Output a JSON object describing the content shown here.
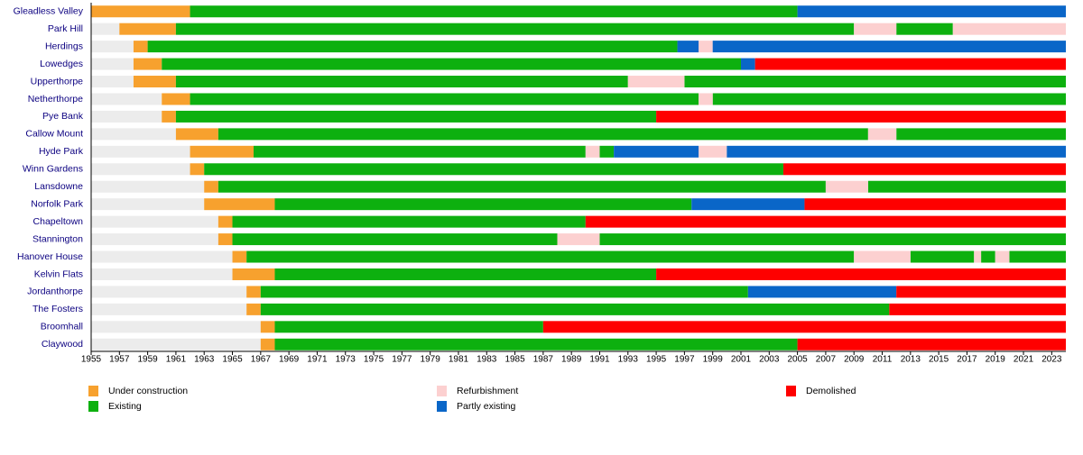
{
  "chart_data": {
    "type": "timeline",
    "categories": [
      "Gleadless Valley",
      "Park Hill",
      "Herdings",
      "Lowedges",
      "Upperthorpe",
      "Netherthorpe",
      "Pye Bank",
      "Callow Mount",
      "Hyde Park",
      "Winn Gardens",
      "Lansdowne",
      "Norfolk Park",
      "Chapeltown",
      "Stannington",
      "Hanover House",
      "Kelvin Flats",
      "Jordanthorpe",
      "The Fosters",
      "Broomhall",
      "Claywood"
    ],
    "series": [
      {
        "name": "Under construction",
        "color": "#f7a12e",
        "values": [
          [
            [
              1955,
              1962
            ]
          ],
          [
            [
              1957,
              1961
            ]
          ],
          [
            [
              1958,
              1959
            ]
          ],
          [
            [
              1958,
              1960
            ]
          ],
          [
            [
              1958,
              1961
            ]
          ],
          [
            [
              1960,
              1962
            ]
          ],
          [
            [
              1960,
              1961
            ]
          ],
          [
            [
              1961,
              1964
            ]
          ],
          [
            [
              1962,
              1966.5
            ]
          ],
          [
            [
              1962,
              1963
            ]
          ],
          [
            [
              1963,
              1964
            ]
          ],
          [
            [
              1963,
              1968
            ]
          ],
          [
            [
              1964,
              1965
            ]
          ],
          [
            [
              1964,
              1965
            ]
          ],
          [
            [
              1965,
              1966
            ]
          ],
          [
            [
              1965,
              1968
            ]
          ],
          [
            [
              1966,
              1967
            ]
          ],
          [
            [
              1966,
              1967
            ]
          ],
          [
            [
              1967,
              1968
            ]
          ],
          [
            [
              1967,
              1968
            ]
          ]
        ]
      },
      {
        "name": "Existing",
        "color": "#0db00f",
        "values": [
          [
            [
              1962,
              2005
            ]
          ],
          [
            [
              1961,
              2009
            ],
            [
              2012,
              2016
            ]
          ],
          [
            [
              1959,
              1996.5
            ]
          ],
          [
            [
              1960,
              2001
            ]
          ],
          [
            [
              1961,
              1993
            ],
            [
              1997,
              2024
            ]
          ],
          [
            [
              1962,
              1998
            ],
            [
              1999,
              2024
            ]
          ],
          [
            [
              1961,
              1995
            ]
          ],
          [
            [
              1964,
              2010
            ],
            [
              2012,
              2024
            ]
          ],
          [
            [
              1966.5,
              1990
            ],
            [
              1991,
              1992
            ]
          ],
          [
            [
              1963,
              2004
            ]
          ],
          [
            [
              1964,
              2007
            ],
            [
              2010,
              2024
            ]
          ],
          [
            [
              1968,
              1997.5
            ]
          ],
          [
            [
              1965,
              1990
            ]
          ],
          [
            [
              1965,
              1988
            ],
            [
              1991,
              2024
            ]
          ],
          [
            [
              1966,
              2009
            ],
            [
              2013,
              2017.5
            ],
            [
              2018,
              2019
            ],
            [
              2020,
              2024
            ]
          ],
          [
            [
              1968,
              1995
            ]
          ],
          [
            [
              1967,
              2001.5
            ]
          ],
          [
            [
              1967,
              2011.5
            ]
          ],
          [
            [
              1968,
              1987
            ]
          ],
          [
            [
              1968,
              2005
            ]
          ]
        ]
      },
      {
        "name": "Refurbishment",
        "color": "#fcd0d0",
        "values": [
          [],
          [
            [
              2009,
              2012
            ],
            [
              2016,
              2024
            ]
          ],
          [
            [
              1998,
              1999
            ]
          ],
          [],
          [
            [
              1993,
              1997
            ]
          ],
          [
            [
              1998,
              1999
            ]
          ],
          [],
          [
            [
              2010,
              2012
            ]
          ],
          [
            [
              1990,
              1991
            ],
            [
              1998,
              2000
            ]
          ],
          [],
          [
            [
              2007,
              2010
            ]
          ],
          [],
          [],
          [
            [
              1988,
              1991
            ]
          ],
          [
            [
              2009,
              2013
            ],
            [
              2017.5,
              2018
            ],
            [
              2019,
              2020
            ]
          ],
          [],
          [],
          [],
          [],
          []
        ]
      },
      {
        "name": "Partly existing",
        "color": "#0a66c8",
        "values": [
          [
            [
              2005,
              2024
            ]
          ],
          [],
          [
            [
              1996.5,
              1998
            ],
            [
              1999,
              2024
            ]
          ],
          [
            [
              2001,
              2002
            ]
          ],
          [],
          [],
          [],
          [],
          [
            [
              1992,
              1998
            ],
            [
              2000,
              2024
            ]
          ],
          [],
          [],
          [
            [
              1997.5,
              2005.5
            ]
          ],
          [],
          [],
          [],
          [],
          [
            [
              2001.5,
              2012
            ]
          ],
          [],
          [],
          []
        ]
      },
      {
        "name": "Demolished",
        "color": "#fe0000",
        "values": [
          [],
          [],
          [],
          [
            [
              2002,
              2024
            ]
          ],
          [],
          [],
          [
            [
              1995,
              2024
            ]
          ],
          [],
          [],
          [
            [
              2004,
              2024
            ]
          ],
          [],
          [
            [
              2005.5,
              2024
            ]
          ],
          [
            [
              1990,
              2024
            ]
          ],
          [],
          [],
          [
            [
              1995,
              2024
            ]
          ],
          [
            [
              2012,
              2024
            ]
          ],
          [
            [
              2011.5,
              2024
            ]
          ],
          [
            [
              1987,
              2024
            ]
          ],
          [
            [
              2005,
              2024
            ]
          ]
        ]
      }
    ],
    "xlim": [
      1955,
      2024
    ],
    "xticks": [
      1955,
      1957,
      1959,
      1961,
      1963,
      1965,
      1967,
      1969,
      1971,
      1973,
      1975,
      1977,
      1979,
      1981,
      1983,
      1985,
      1987,
      1989,
      1991,
      1993,
      1995,
      1997,
      1999,
      2001,
      2003,
      2005,
      2007,
      2009,
      2011,
      2013,
      2015,
      2017,
      2019,
      2021,
      2023
    ]
  }
}
